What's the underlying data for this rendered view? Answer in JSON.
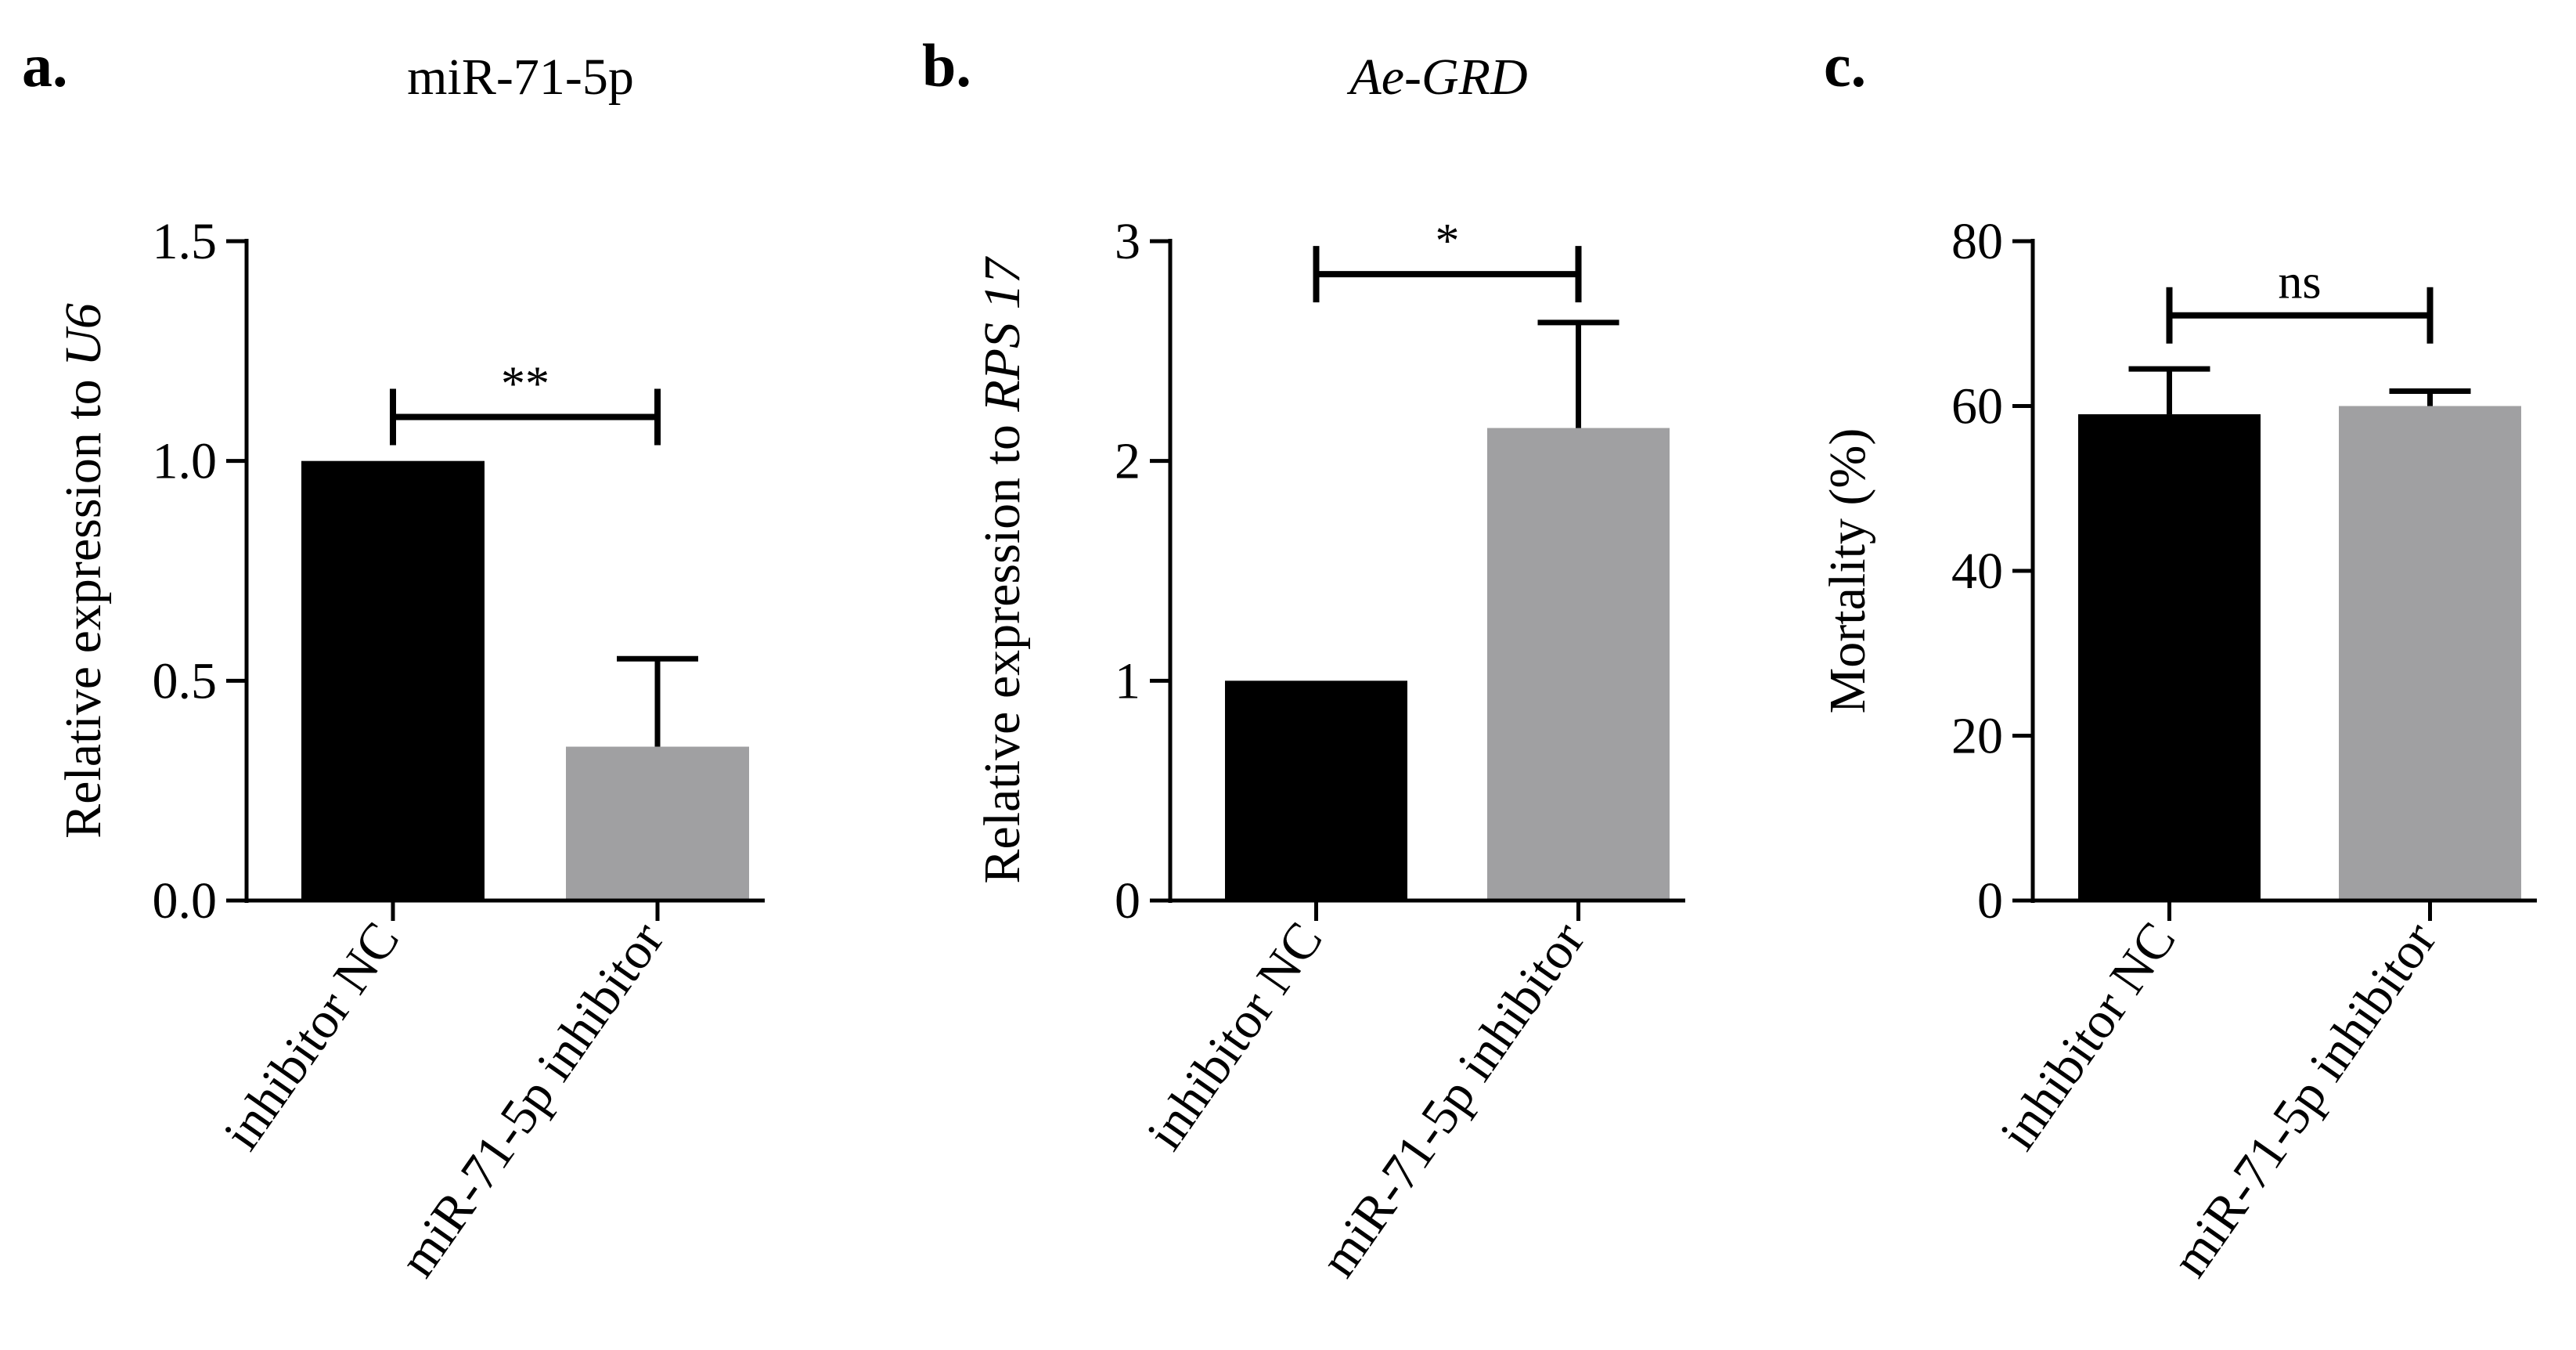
{
  "colors": {
    "nc_bar": "#000000",
    "inhibitor_bar": "#a0a0a2",
    "axis": "#000000"
  },
  "chart_data": [
    {
      "type": "bar",
      "panel_label": "a.",
      "title": "miR-71-5p",
      "title_italic": false,
      "ylabel_prefix": "Relative expression to ",
      "ylabel_italic": "U6",
      "categories": [
        "inhibitor NC",
        "miR-71-5p inhibitor"
      ],
      "values": [
        1.0,
        0.35
      ],
      "errors": [
        0,
        0.2
      ],
      "ylim": [
        0,
        1.5
      ],
      "yticks": [
        0,
        0.5,
        1.0,
        1.5
      ],
      "ytick_labels": [
        "0.0",
        "0.5",
        "1.0",
        "1.5"
      ],
      "significance": "**",
      "bracket_y": 1.1
    },
    {
      "type": "bar",
      "panel_label": "b.",
      "title": "Ae-GRD",
      "title_italic": true,
      "ylabel_prefix": "Relative expression to ",
      "ylabel_italic": "RPS 17",
      "categories": [
        "inhibitor NC",
        "miR-71-5p inhibitor"
      ],
      "values": [
        1.0,
        2.15
      ],
      "errors": [
        0,
        0.48
      ],
      "ylim": [
        0,
        3
      ],
      "yticks": [
        0,
        1,
        2,
        3
      ],
      "ytick_labels": [
        "0",
        "1",
        "2",
        "3"
      ],
      "significance": "*",
      "bracket_y": 2.85
    },
    {
      "type": "bar",
      "panel_label": "c.",
      "title": "",
      "title_italic": false,
      "ylabel_prefix": "Mortality (%)",
      "ylabel_italic": "",
      "categories": [
        "inhibitor NC",
        "miR-71-5p inhibitor"
      ],
      "values": [
        59,
        60
      ],
      "errors": [
        5.5,
        1.8
      ],
      "ylim": [
        0,
        80
      ],
      "yticks": [
        0,
        20,
        40,
        60,
        80
      ],
      "ytick_labels": [
        "0",
        "20",
        "40",
        "60",
        "80"
      ],
      "significance": "ns",
      "bracket_y": 71
    }
  ]
}
